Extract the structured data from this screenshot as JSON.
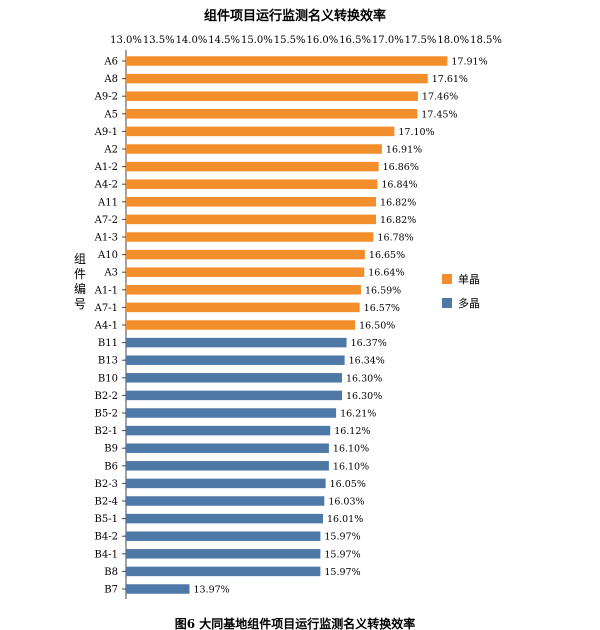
{
  "chart_data": {
    "type": "bar",
    "orientation": "horizontal",
    "title": "组件项目运行监测名义转换效率",
    "ylabel": "组件编号",
    "xlim": [
      13.0,
      18.5
    ],
    "x_ticks": [
      "13.0%",
      "13.5%",
      "14.0%",
      "14.5%",
      "15.0%",
      "15.5%",
      "16.0%",
      "16.5%",
      "17.0%",
      "17.5%",
      "18.0%",
      "18.5%"
    ],
    "x_axis_position": "top",
    "grid": false,
    "legend_position": "right",
    "series": [
      {
        "name": "单晶",
        "color": "#F28E2B",
        "categories": [
          "A6",
          "A8",
          "A9-2",
          "A5",
          "A9-1",
          "A2",
          "A1-2",
          "A4-2",
          "A11",
          "A7-2",
          "A1-3",
          "A10",
          "A3",
          "A1-1",
          "A7-1",
          "A4-1"
        ],
        "values": [
          17.91,
          17.61,
          17.46,
          17.45,
          17.1,
          16.91,
          16.86,
          16.84,
          16.82,
          16.82,
          16.78,
          16.65,
          16.64,
          16.59,
          16.57,
          16.5
        ],
        "labels": [
          "17.91%",
          "17.61%",
          "17.46%",
          "17.45%",
          "17.10%",
          "16.91%",
          "16.86%",
          "16.84%",
          "16.82%",
          "16.82%",
          "16.78%",
          "16.65%",
          "16.64%",
          "16.59%",
          "16.57%",
          "16.50%"
        ]
      },
      {
        "name": "多晶",
        "color": "#4E79A7",
        "categories": [
          "B11",
          "B13",
          "B10",
          "B2-2",
          "B5-2",
          "B2-1",
          "B9",
          "B6",
          "B2-3",
          "B2-4",
          "B5-1",
          "B4-2",
          "B4-1",
          "B8",
          "B7"
        ],
        "values": [
          16.37,
          16.34,
          16.3,
          16.3,
          16.21,
          16.12,
          16.1,
          16.1,
          16.05,
          16.03,
          16.01,
          15.97,
          15.97,
          15.97,
          13.97
        ],
        "labels": [
          "16.37%",
          "16.34%",
          "16.30%",
          "16.30%",
          "16.21%",
          "16.12%",
          "16.10%",
          "16.10%",
          "16.05%",
          "16.03%",
          "16.01%",
          "15.97%",
          "15.97%",
          "15.97%",
          "13.97%"
        ]
      }
    ]
  },
  "caption": "图6  大同基地组件项目运行监测名义转换效率"
}
